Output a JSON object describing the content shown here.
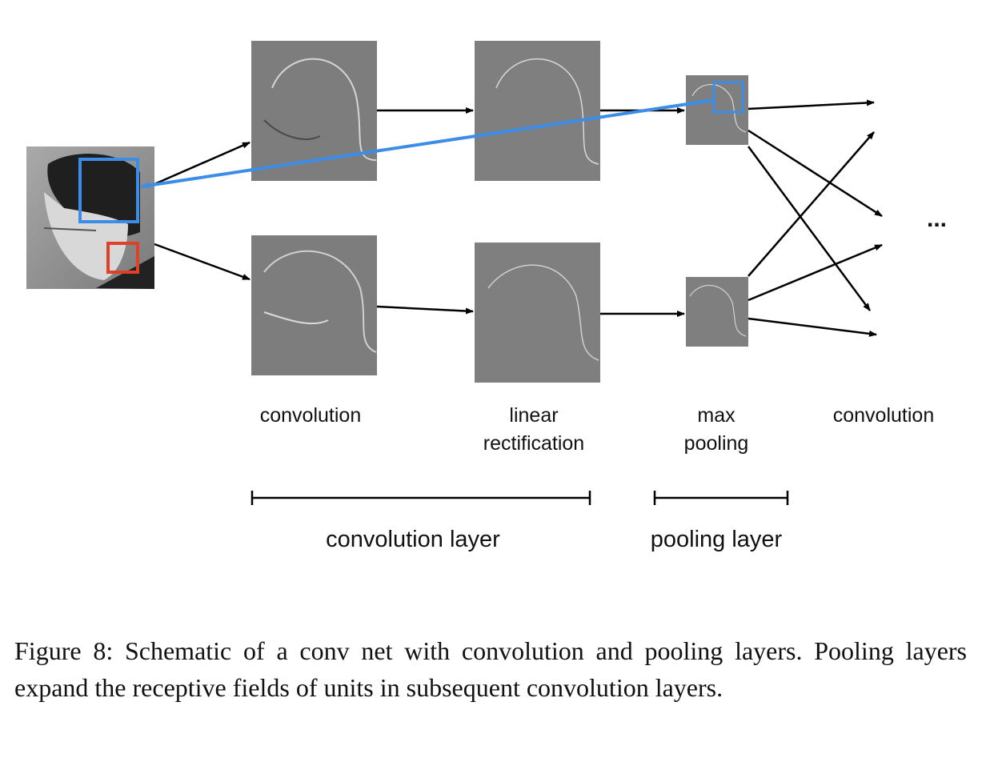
{
  "diagram": {
    "stage_labels": {
      "conv1": "convolution",
      "rect_line1": "linear",
      "rect_line2": "rectification",
      "pool_line1": "max",
      "pool_line2": "pooling",
      "conv2": "convolution"
    },
    "layer_labels": {
      "convolution_layer": "convolution layer",
      "pooling_layer": "pooling layer"
    },
    "ellipsis": "...",
    "colors": {
      "receptive_field_blue": "#3b8de8",
      "receptive_field_red": "#e0402a",
      "arrow": "#000000",
      "feature_map_gray": "#808080"
    }
  },
  "caption": {
    "text": "Figure 8:  Schematic of a conv net with convolution and pooling layers. Pooling layers expand the receptive fields of units in subsequent convolution layers."
  }
}
